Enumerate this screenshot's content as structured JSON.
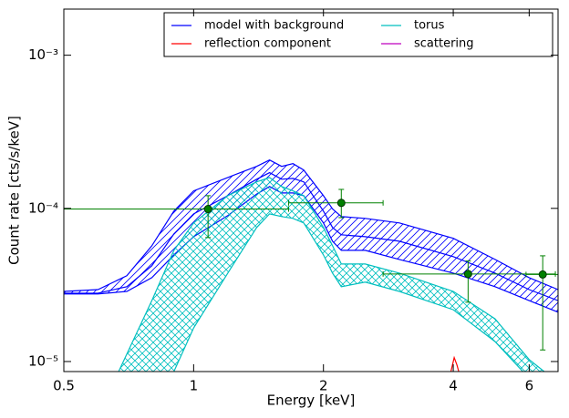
{
  "chart_data": {
    "type": "scatter",
    "xscale": "log",
    "yscale": "log",
    "xlabel": "Energy [keV]",
    "ylabel": "Count rate [cts/s/keV]",
    "xlim": [
      0.5,
      7
    ],
    "ylim": [
      8.6e-06,
      0.002
    ],
    "xticks": [
      0.5,
      1,
      2,
      4,
      6
    ],
    "yticks": [
      {
        "value": 1e-05,
        "label": "10⁻⁵"
      },
      {
        "value": 0.0001,
        "label": "10⁻⁴"
      },
      {
        "value": 0.001,
        "label": "10⁻³"
      }
    ],
    "legend": "upper right",
    "series": [
      {
        "name": "model with background",
        "color": "#0000ff",
        "hatch": "diagonal",
        "x": [
          0.5,
          0.6,
          0.7,
          0.8,
          0.9,
          1.0,
          1.2,
          1.4,
          1.5,
          1.6,
          1.7,
          1.8,
          2.0,
          2.1,
          2.2,
          2.5,
          3,
          4,
          5,
          6,
          7
        ],
        "values": [
          2.79e-05,
          2.79e-05,
          3.08e-05,
          4.22e-05,
          6.81e-05,
          9.2e-05,
          0.000121,
          0.000155,
          0.000171,
          0.000155,
          0.000157,
          0.000149,
          9.6e-05,
          7.5e-05,
          6.72e-05,
          6.53e-05,
          6.1e-05,
          4.84e-05,
          3.78e-05,
          2.95e-05,
          2.5e-05
        ],
        "upper": [
          2.87e-05,
          2.95e-05,
          3.63e-05,
          5.7e-05,
          9.6e-05,
          0.00013,
          0.000159,
          0.000188,
          0.000207,
          0.000188,
          0.000196,
          0.000178,
          0.000121,
          9.9e-05,
          8.84e-05,
          8.6e-05,
          8.03e-05,
          6.37e-05,
          4.64e-05,
          3.53e-05,
          2.95e-05
        ],
        "lower": [
          2.76e-05,
          2.76e-05,
          2.87e-05,
          3.53e-05,
          4.97e-05,
          6.53e-05,
          8.96e-05,
          0.000124,
          0.000139,
          0.000126,
          0.000126,
          0.000121,
          8.03e-05,
          6.1e-05,
          5.32e-05,
          5.32e-05,
          4.64e-05,
          3.78e-05,
          3.08e-05,
          2.5e-05,
          2.1e-05
        ]
      },
      {
        "name": "torus",
        "color": "#00bfbf",
        "hatch": "cross",
        "upper": {
          "x": [
            0.67,
            0.8,
            0.9,
            1.0,
            1.2,
            1.4,
            1.5,
            1.6,
            1.7,
            1.8,
            2.0,
            2.1,
            2.2,
            2.5,
            3,
            4,
            5,
            6,
            6.5
          ],
          "values": [
            8.6e-06,
            2.5e-05,
            5.32e-05,
            8.03e-05,
            0.000121,
            0.000149,
            0.000159,
            0.000139,
            0.00013,
            0.000121,
            7.5e-05,
            5.7e-05,
            4.33e-05,
            4.33e-05,
            3.78e-05,
            2.87e-05,
            1.9e-05,
            1.03e-05,
            8.6e-06
          ]
        },
        "lower": {
          "x": [
            0.9,
            1.0,
            1.2,
            1.4,
            1.5,
            1.6,
            1.7,
            1.8,
            2.0,
            2.1,
            2.2,
            2.5,
            3,
            4,
            5,
            5.8
          ],
          "values": [
            8.6e-06,
            1.66e-05,
            3.78e-05,
            7.5e-05,
            9.2e-05,
            8.84e-05,
            8.6e-05,
            8.03e-05,
            4.97e-05,
            3.78e-05,
            3.08e-05,
            3.3e-05,
            2.87e-05,
            2.18e-05,
            1.35e-05,
            8.6e-06
          ]
        }
      },
      {
        "name": "reflection component",
        "color": "#ff0000",
        "x": [
          3.95,
          4.02,
          4.08,
          4.12
        ],
        "values": [
          8.6e-06,
          1.06e-05,
          9.5e-06,
          8.6e-06
        ]
      },
      {
        "name": "scattering",
        "color": "#bf00bf",
        "x": [],
        "values": []
      }
    ],
    "points": {
      "color": "#008000",
      "x": [
        1.08,
        2.2,
        4.33,
        6.45
      ],
      "values": [
        9.9e-05,
        0.0001086,
        3.73e-05,
        3.7e-05
      ],
      "xlow": [
        0.5,
        1.66,
        2.75,
        5.9
      ],
      "xhigh": [
        1.66,
        2.75,
        6.9,
        7.0
      ],
      "ylow": [
        6.45e-05,
        8.7e-05,
        2.44e-05,
        1.19e-05
      ],
      "yhigh": [
        0.000121,
        0.000133,
        4.53e-05,
        4.9e-05
      ]
    }
  }
}
